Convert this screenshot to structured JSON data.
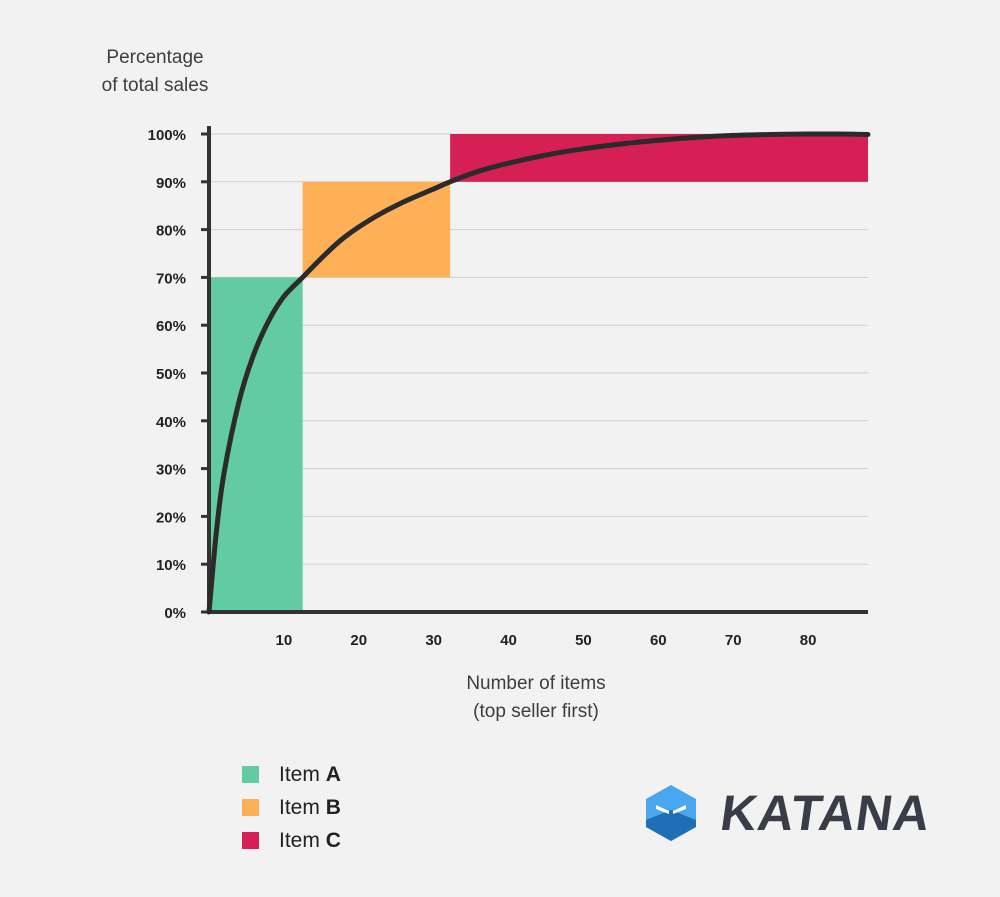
{
  "y_axis_title": [
    "Percentage",
    "of total sales"
  ],
  "x_axis_title": [
    "Number of items",
    "(top seller first)"
  ],
  "legend": [
    {
      "prefix": "Item ",
      "letter": "A",
      "color": "#62cba3"
    },
    {
      "prefix": "Item ",
      "letter": "B",
      "color": "#ffb057"
    },
    {
      "prefix": "Item ",
      "letter": "C",
      "color": "#d61f54"
    }
  ],
  "brand": {
    "name": "KATANA",
    "icon": "katana-logo-icon"
  },
  "colors": {
    "curve": "#2b2b2b",
    "axis": "#333333",
    "grid": "#cfcfcf"
  },
  "chart_data": {
    "type": "area",
    "y_ticks": [
      "0%",
      "10%",
      "20%",
      "30%",
      "40%",
      "50%",
      "60%",
      "70%",
      "80%",
      "90%",
      "100%"
    ],
    "x_ticks": [
      "10",
      "20",
      "30",
      "40",
      "50",
      "60",
      "70",
      "80"
    ],
    "ylim": [
      0,
      100
    ],
    "xlim": [
      0,
      88
    ],
    "grid": true,
    "regions": [
      {
        "name": "Item A",
        "x": [
          0,
          12.5
        ],
        "y": [
          0,
          70
        ]
      },
      {
        "name": "Item B",
        "x": [
          12.5,
          32.2
        ],
        "y": [
          70,
          90
        ]
      },
      {
        "name": "Item C",
        "x": [
          32.2,
          88
        ],
        "y": [
          90,
          100
        ]
      }
    ],
    "curve": {
      "x": [
        0,
        1,
        2,
        4,
        6,
        8,
        10,
        12.5,
        15,
        18,
        22,
        26,
        30,
        32.2,
        36,
        40,
        45,
        50,
        55,
        60,
        65,
        70,
        75,
        80,
        84,
        88
      ],
      "y": [
        0,
        17,
        29,
        44,
        54,
        61,
        66,
        70,
        74,
        78.3,
        82.5,
        85.8,
        88.5,
        90,
        92.2,
        93.9,
        95.6,
        96.9,
        97.9,
        98.7,
        99.3,
        99.7,
        99.9,
        100,
        100,
        99.9
      ]
    }
  }
}
